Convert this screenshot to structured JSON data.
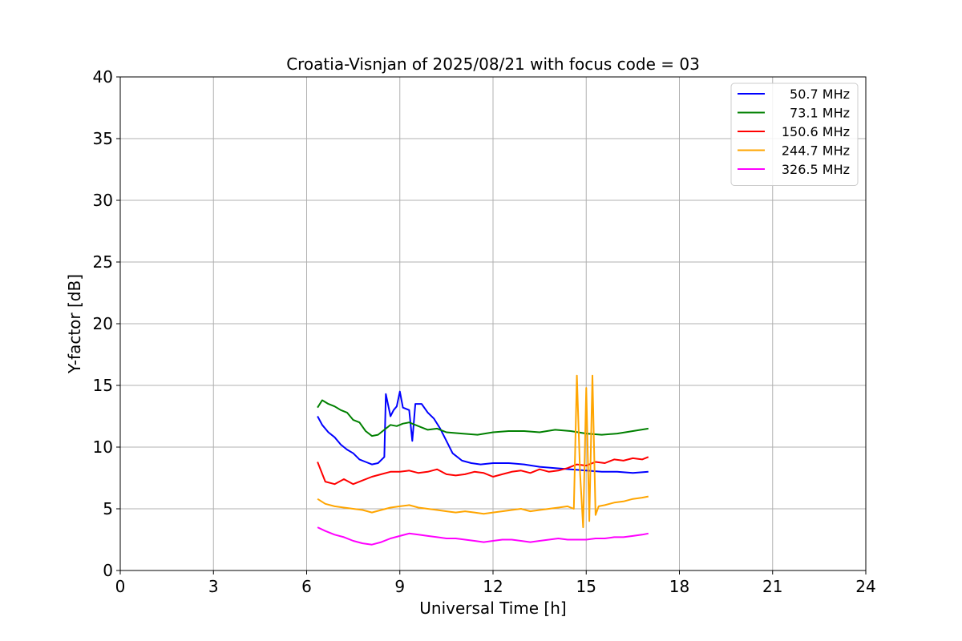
{
  "chart_data": {
    "type": "line",
    "title": "Croatia-Visnjan of 2025/08/21 with focus code = 03",
    "xlabel": "Universal Time [h]",
    "ylabel": "Y-factor [dB]",
    "xlim": [
      0,
      24
    ],
    "ylim": [
      0,
      40
    ],
    "xticks": [
      0,
      3,
      6,
      9,
      12,
      15,
      18,
      21,
      24
    ],
    "yticks": [
      0,
      5,
      10,
      15,
      20,
      25,
      30,
      35,
      40
    ],
    "grid": true,
    "legend_position": "top-right",
    "series": [
      {
        "name": "50.7 MHz",
        "color": "#0000ff",
        "points": [
          [
            6.35,
            12.5
          ],
          [
            6.5,
            11.8
          ],
          [
            6.7,
            11.2
          ],
          [
            6.9,
            10.8
          ],
          [
            7.1,
            10.2
          ],
          [
            7.3,
            9.8
          ],
          [
            7.5,
            9.5
          ],
          [
            7.7,
            9.0
          ],
          [
            7.9,
            8.8
          ],
          [
            8.1,
            8.6
          ],
          [
            8.3,
            8.7
          ],
          [
            8.5,
            9.2
          ],
          [
            8.55,
            14.3
          ],
          [
            8.7,
            12.5
          ],
          [
            8.8,
            13.0
          ],
          [
            8.9,
            13.3
          ],
          [
            9.0,
            14.5
          ],
          [
            9.1,
            13.2
          ],
          [
            9.3,
            13.0
          ],
          [
            9.4,
            10.5
          ],
          [
            9.5,
            13.5
          ],
          [
            9.7,
            13.5
          ],
          [
            9.9,
            12.8
          ],
          [
            10.1,
            12.3
          ],
          [
            10.3,
            11.5
          ],
          [
            10.5,
            10.5
          ],
          [
            10.7,
            9.5
          ],
          [
            11.0,
            8.9
          ],
          [
            11.3,
            8.7
          ],
          [
            11.6,
            8.6
          ],
          [
            12.0,
            8.7
          ],
          [
            12.5,
            8.7
          ],
          [
            13.0,
            8.6
          ],
          [
            13.5,
            8.4
          ],
          [
            14.0,
            8.3
          ],
          [
            14.5,
            8.2
          ],
          [
            15.0,
            8.1
          ],
          [
            15.5,
            8.0
          ],
          [
            16.0,
            8.0
          ],
          [
            16.5,
            7.9
          ],
          [
            17.0,
            8.0
          ]
        ]
      },
      {
        "name": "73.1 MHz",
        "color": "#008000",
        "points": [
          [
            6.35,
            13.2
          ],
          [
            6.5,
            13.8
          ],
          [
            6.7,
            13.5
          ],
          [
            6.9,
            13.3
          ],
          [
            7.1,
            13.0
          ],
          [
            7.3,
            12.8
          ],
          [
            7.5,
            12.2
          ],
          [
            7.7,
            12.0
          ],
          [
            7.9,
            11.3
          ],
          [
            8.1,
            10.9
          ],
          [
            8.3,
            11.0
          ],
          [
            8.5,
            11.4
          ],
          [
            8.7,
            11.8
          ],
          [
            8.9,
            11.7
          ],
          [
            9.1,
            11.9
          ],
          [
            9.3,
            12.0
          ],
          [
            9.5,
            11.8
          ],
          [
            9.7,
            11.6
          ],
          [
            9.9,
            11.4
          ],
          [
            10.2,
            11.5
          ],
          [
            10.5,
            11.2
          ],
          [
            11.0,
            11.1
          ],
          [
            11.5,
            11.0
          ],
          [
            12.0,
            11.2
          ],
          [
            12.5,
            11.3
          ],
          [
            13.0,
            11.3
          ],
          [
            13.5,
            11.2
          ],
          [
            14.0,
            11.4
          ],
          [
            14.5,
            11.3
          ],
          [
            15.0,
            11.1
          ],
          [
            15.5,
            11.0
          ],
          [
            16.0,
            11.1
          ],
          [
            16.5,
            11.3
          ],
          [
            17.0,
            11.5
          ]
        ]
      },
      {
        "name": "150.6 MHz",
        "color": "#ff0000",
        "points": [
          [
            6.35,
            8.8
          ],
          [
            6.6,
            7.2
          ],
          [
            6.9,
            7.0
          ],
          [
            7.2,
            7.4
          ],
          [
            7.5,
            7.0
          ],
          [
            7.8,
            7.3
          ],
          [
            8.1,
            7.6
          ],
          [
            8.4,
            7.8
          ],
          [
            8.7,
            8.0
          ],
          [
            9.0,
            8.0
          ],
          [
            9.3,
            8.1
          ],
          [
            9.6,
            7.9
          ],
          [
            9.9,
            8.0
          ],
          [
            10.2,
            8.2
          ],
          [
            10.5,
            7.8
          ],
          [
            10.8,
            7.7
          ],
          [
            11.1,
            7.8
          ],
          [
            11.4,
            8.0
          ],
          [
            11.7,
            7.9
          ],
          [
            12.0,
            7.6
          ],
          [
            12.3,
            7.8
          ],
          [
            12.6,
            8.0
          ],
          [
            12.9,
            8.1
          ],
          [
            13.2,
            7.9
          ],
          [
            13.5,
            8.2
          ],
          [
            13.8,
            8.0
          ],
          [
            14.1,
            8.1
          ],
          [
            14.4,
            8.3
          ],
          [
            14.7,
            8.6
          ],
          [
            15.0,
            8.5
          ],
          [
            15.3,
            8.8
          ],
          [
            15.6,
            8.7
          ],
          [
            15.9,
            9.0
          ],
          [
            16.2,
            8.9
          ],
          [
            16.5,
            9.1
          ],
          [
            16.8,
            9.0
          ],
          [
            17.0,
            9.2
          ]
        ]
      },
      {
        "name": "244.7 MHz",
        "color": "#ffa500",
        "points": [
          [
            6.35,
            5.8
          ],
          [
            6.6,
            5.4
          ],
          [
            6.9,
            5.2
          ],
          [
            7.2,
            5.1
          ],
          [
            7.5,
            5.0
          ],
          [
            7.8,
            4.9
          ],
          [
            8.1,
            4.7
          ],
          [
            8.4,
            4.9
          ],
          [
            8.7,
            5.1
          ],
          [
            9.0,
            5.2
          ],
          [
            9.3,
            5.3
          ],
          [
            9.6,
            5.1
          ],
          [
            9.9,
            5.0
          ],
          [
            10.2,
            4.9
          ],
          [
            10.5,
            4.8
          ],
          [
            10.8,
            4.7
          ],
          [
            11.1,
            4.8
          ],
          [
            11.4,
            4.7
          ],
          [
            11.7,
            4.6
          ],
          [
            12.0,
            4.7
          ],
          [
            12.3,
            4.8
          ],
          [
            12.6,
            4.9
          ],
          [
            12.9,
            5.0
          ],
          [
            13.2,
            4.8
          ],
          [
            13.5,
            4.9
          ],
          [
            13.8,
            5.0
          ],
          [
            14.1,
            5.1
          ],
          [
            14.4,
            5.2
          ],
          [
            14.6,
            5.0
          ],
          [
            14.7,
            15.8
          ],
          [
            14.8,
            8.0
          ],
          [
            14.9,
            3.5
          ],
          [
            15.0,
            14.8
          ],
          [
            15.1,
            4.0
          ],
          [
            15.2,
            15.8
          ],
          [
            15.3,
            4.5
          ],
          [
            15.4,
            5.2
          ],
          [
            15.6,
            5.3
          ],
          [
            15.9,
            5.5
          ],
          [
            16.2,
            5.6
          ],
          [
            16.5,
            5.8
          ],
          [
            16.8,
            5.9
          ],
          [
            17.0,
            6.0
          ]
        ]
      },
      {
        "name": "326.5 MHz",
        "color": "#ff00ff",
        "points": [
          [
            6.35,
            3.5
          ],
          [
            6.6,
            3.2
          ],
          [
            6.9,
            2.9
          ],
          [
            7.2,
            2.7
          ],
          [
            7.5,
            2.4
          ],
          [
            7.8,
            2.2
          ],
          [
            8.1,
            2.1
          ],
          [
            8.4,
            2.3
          ],
          [
            8.7,
            2.6
          ],
          [
            9.0,
            2.8
          ],
          [
            9.3,
            3.0
          ],
          [
            9.6,
            2.9
          ],
          [
            9.9,
            2.8
          ],
          [
            10.2,
            2.7
          ],
          [
            10.5,
            2.6
          ],
          [
            10.8,
            2.6
          ],
          [
            11.1,
            2.5
          ],
          [
            11.4,
            2.4
          ],
          [
            11.7,
            2.3
          ],
          [
            12.0,
            2.4
          ],
          [
            12.3,
            2.5
          ],
          [
            12.6,
            2.5
          ],
          [
            12.9,
            2.4
          ],
          [
            13.2,
            2.3
          ],
          [
            13.5,
            2.4
          ],
          [
            13.8,
            2.5
          ],
          [
            14.1,
            2.6
          ],
          [
            14.4,
            2.5
          ],
          [
            14.7,
            2.5
          ],
          [
            15.0,
            2.5
          ],
          [
            15.3,
            2.6
          ],
          [
            15.6,
            2.6
          ],
          [
            15.9,
            2.7
          ],
          [
            16.2,
            2.7
          ],
          [
            16.5,
            2.8
          ],
          [
            16.8,
            2.9
          ],
          [
            17.0,
            3.0
          ]
        ]
      }
    ]
  }
}
